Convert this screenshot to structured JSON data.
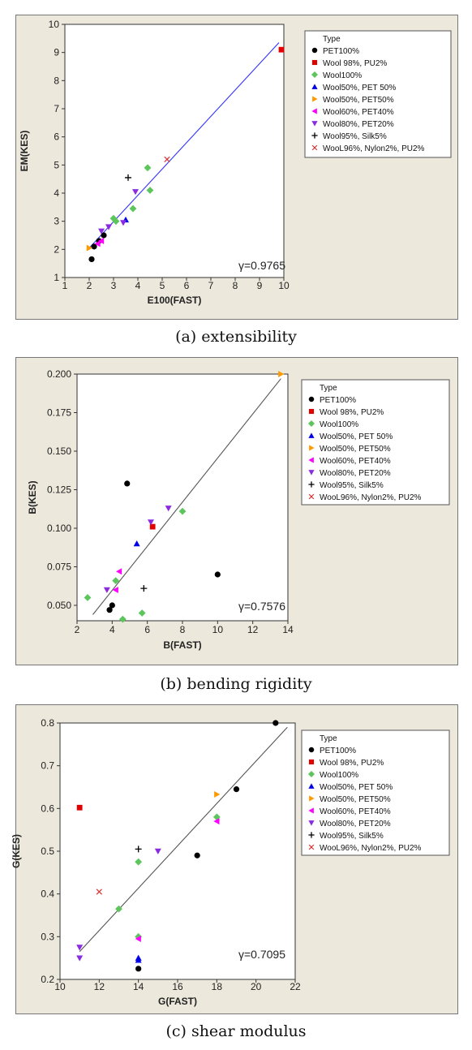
{
  "legend_title": "Type",
  "legend_entries": [
    {
      "name": "PET100%",
      "marker": "circle",
      "color": "#000000"
    },
    {
      "name": "Wool 98%, PU2%",
      "marker": "square",
      "color": "#e00000"
    },
    {
      "name": "Wool100%",
      "marker": "diamond",
      "color": "#5cc65c"
    },
    {
      "name": "Wool50%, PET 50%",
      "marker": "triangle-up",
      "color": "#0000e6"
    },
    {
      "name": "Wool50%, PET50%",
      "marker": "triangle-right",
      "color": "#ff9900"
    },
    {
      "name": "Wool60%, PET40%",
      "marker": "triangle-left",
      "color": "#ff00ff"
    },
    {
      "name": "Wool80%, PET20%",
      "marker": "triangle-down",
      "color": "#8a2be2"
    },
    {
      "name": "Wool95%, Silk5%",
      "marker": "plus",
      "color": "#000000"
    },
    {
      "name": "WooL96%, Nylon2%, PU2%",
      "marker": "x",
      "color": "#e03030"
    }
  ],
  "chart_data": [
    {
      "type": "scatter",
      "caption": "(a) extensibility",
      "xlabel": "E100(FAST)",
      "ylabel": "EM(KES)",
      "annotation": "γ=0.9765",
      "xlim": [
        1,
        10
      ],
      "ylim": [
        1,
        10
      ],
      "xticks": [
        "1",
        "2",
        "3",
        "4",
        "5",
        "6",
        "7",
        "8",
        "9",
        "10"
      ],
      "yticks": [
        "1",
        "2",
        "3",
        "4",
        "5",
        "6",
        "7",
        "8",
        "9",
        "10"
      ],
      "fit_line": {
        "x": [
          2.0,
          9.8
        ],
        "y": [
          2.05,
          9.35
        ],
        "color": "#3333ff"
      },
      "series": [
        {
          "name": "PET100%",
          "points": [
            [
              2.1,
              1.65
            ],
            [
              2.2,
              2.1
            ],
            [
              2.4,
              2.3
            ],
            [
              2.6,
              2.5
            ]
          ]
        },
        {
          "name": "Wool 98%, PU2%",
          "points": [
            [
              9.9,
              9.1
            ]
          ]
        },
        {
          "name": "Wool100%",
          "points": [
            [
              3.0,
              3.1
            ],
            [
              3.1,
              3.0
            ],
            [
              3.8,
              3.45
            ],
            [
              4.4,
              4.9
            ],
            [
              4.5,
              4.1
            ]
          ]
        },
        {
          "name": "Wool50%, PET 50%",
          "points": [
            [
              3.5,
              3.05
            ]
          ]
        },
        {
          "name": "Wool50%, PET50%",
          "points": [
            [
              2.0,
              2.05
            ]
          ]
        },
        {
          "name": "Wool60%, PET40%",
          "points": [
            [
              2.35,
              2.2
            ],
            [
              2.5,
              2.3
            ]
          ]
        },
        {
          "name": "Wool80%, PET20%",
          "points": [
            [
              2.5,
              2.65
            ],
            [
              2.8,
              2.8
            ],
            [
              3.4,
              2.95
            ],
            [
              3.9,
              4.05
            ]
          ]
        },
        {
          "name": "Wool95%, Silk5%",
          "points": [
            [
              3.6,
              4.55
            ]
          ]
        },
        {
          "name": "WooL96%, Nylon2%, PU2%",
          "points": [
            [
              5.2,
              5.2
            ]
          ]
        }
      ]
    },
    {
      "type": "scatter",
      "caption": "(b) bending rigidity",
      "xlabel": "B(FAST)",
      "ylabel": "B(KES)",
      "annotation": "γ=0.7576",
      "xlim": [
        2,
        14
      ],
      "ylim": [
        0.04,
        0.2
      ],
      "xticks": [
        "2",
        "4",
        "6",
        "8",
        "10",
        "12",
        "14"
      ],
      "yticks": [
        "0.050",
        "0.075",
        "0.100",
        "0.125",
        "0.150",
        "0.175",
        "0.200"
      ],
      "fit_line": {
        "x": [
          2.9,
          13.6
        ],
        "y": [
          0.044,
          0.197
        ],
        "color": "#555555"
      },
      "series": [
        {
          "name": "PET100%",
          "points": [
            [
              3.85,
              0.047
            ],
            [
              4.0,
              0.05
            ],
            [
              4.85,
              0.129
            ],
            [
              10.0,
              0.07
            ]
          ]
        },
        {
          "name": "Wool 98%, PU2%",
          "points": [
            [
              6.3,
              0.101
            ]
          ]
        },
        {
          "name": "Wool100%",
          "points": [
            [
              2.6,
              0.055
            ],
            [
              4.2,
              0.066
            ],
            [
              4.6,
              0.041
            ],
            [
              5.7,
              0.045
            ],
            [
              8.0,
              0.111
            ]
          ]
        },
        {
          "name": "Wool50%, PET 50%",
          "points": [
            [
              5.4,
              0.09
            ]
          ]
        },
        {
          "name": "Wool50%, PET50%",
          "points": [
            [
              13.6,
              0.2
            ]
          ]
        },
        {
          "name": "Wool60%, PET40%",
          "points": [
            [
              4.2,
              0.06
            ],
            [
              4.4,
              0.072
            ]
          ]
        },
        {
          "name": "Wool80%, PET20%",
          "points": [
            [
              3.7,
              0.06
            ],
            [
              6.2,
              0.104
            ],
            [
              7.2,
              0.113
            ]
          ]
        },
        {
          "name": "Wool95%, Silk5%",
          "points": [
            [
              5.8,
              0.061
            ]
          ]
        },
        {
          "name": "WooL96%, Nylon2%, PU2%",
          "points": []
        }
      ]
    },
    {
      "type": "scatter",
      "caption": "(c) shear modulus",
      "xlabel": "G(FAST)",
      "ylabel": "G(KES)",
      "annotation": "γ=0.7095",
      "xlim": [
        10,
        22
      ],
      "ylim": [
        0.2,
        0.8
      ],
      "xticks": [
        "10",
        "12",
        "14",
        "16",
        "18",
        "20",
        "22"
      ],
      "yticks": [
        "0.2",
        "0.3",
        "0.4",
        "0.5",
        "0.6",
        "0.7",
        "0.8"
      ],
      "fit_line": {
        "x": [
          11.0,
          21.6
        ],
        "y": [
          0.265,
          0.79
        ],
        "color": "#555555"
      },
      "series": [
        {
          "name": "PET100%",
          "points": [
            [
              14.0,
              0.225
            ],
            [
              17.0,
              0.49
            ],
            [
              19.0,
              0.645
            ],
            [
              21.0,
              0.8
            ]
          ]
        },
        {
          "name": "Wool 98%, PU2%",
          "points": [
            [
              11.0,
              0.602
            ]
          ]
        },
        {
          "name": "Wool100%",
          "points": [
            [
              13.0,
              0.365
            ],
            [
              14.0,
              0.3
            ],
            [
              14.0,
              0.475
            ],
            [
              18.0,
              0.58
            ]
          ]
        },
        {
          "name": "Wool50%, PET 50%",
          "points": [
            [
              14.0,
              0.25
            ],
            [
              14.0,
              0.245
            ]
          ]
        },
        {
          "name": "Wool50%, PET50%",
          "points": [
            [
              18.0,
              0.633
            ]
          ]
        },
        {
          "name": "Wool60%, PET40%",
          "points": [
            [
              14.0,
              0.295
            ],
            [
              18.0,
              0.57
            ]
          ]
        },
        {
          "name": "Wool80%, PET20%",
          "points": [
            [
              11.0,
              0.275
            ],
            [
              11.0,
              0.25
            ],
            [
              15.0,
              0.5
            ]
          ]
        },
        {
          "name": "Wool95%, Silk5%",
          "points": [
            [
              14.0,
              0.505
            ]
          ]
        },
        {
          "name": "WooL96%, Nylon2%, PU2%",
          "points": [
            [
              12.0,
              0.405
            ]
          ]
        }
      ]
    }
  ]
}
